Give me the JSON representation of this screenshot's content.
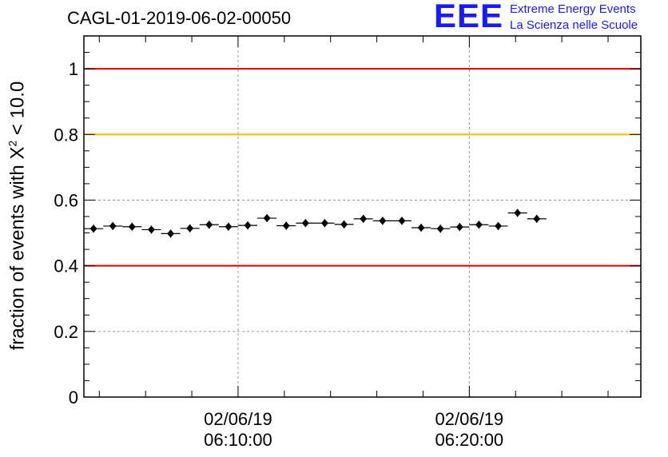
{
  "header": {
    "run_title": "CAGL-01-2019-06-02-00050",
    "logo_mark": "EEE",
    "logo_line1": "Extreme Energy Events",
    "logo_line2": "La Scienza nelle Scuole"
  },
  "colors": {
    "logo": "#1a1aff",
    "red_threshold": "#dd0000",
    "yellow_threshold": "#ffbb00",
    "markers": "#000000",
    "grid": "#999999"
  },
  "chart_data": {
    "type": "scatter",
    "title": "CAGL-01-2019-06-02-00050",
    "ylabel_prefix": "fraction of events with X",
    "ylabel_sup": "2",
    "ylabel_suffix": " < 10.0",
    "ylim": [
      0,
      1.1
    ],
    "yticks": [
      0,
      0.2,
      0.4,
      0.6,
      0.8,
      1
    ],
    "ytick_labels": [
      "0",
      "0.2",
      "0.4",
      "0.6",
      "0.8",
      "1"
    ],
    "xlim": [
      "06:03:20",
      "06:27:25"
    ],
    "xticks": [
      {
        "date": "02/06/19",
        "time": "06:10:00"
      },
      {
        "date": "02/06/19",
        "time": "06:20:00"
      }
    ],
    "grid": true,
    "reference_lines": [
      {
        "value": 1.0,
        "color": "red"
      },
      {
        "value": 0.8,
        "color": "yellow"
      },
      {
        "value": 0.4,
        "color": "red"
      }
    ],
    "bin_width_minutes": 0.83,
    "points": [
      {
        "t": "06:03:45",
        "y": 0.513
      },
      {
        "t": "06:04:35",
        "y": 0.521
      },
      {
        "t": "06:05:25",
        "y": 0.519
      },
      {
        "t": "06:06:15",
        "y": 0.51
      },
      {
        "t": "06:07:05",
        "y": 0.498
      },
      {
        "t": "06:07:55",
        "y": 0.514
      },
      {
        "t": "06:08:45",
        "y": 0.525
      },
      {
        "t": "06:09:35",
        "y": 0.519
      },
      {
        "t": "06:10:25",
        "y": 0.523
      },
      {
        "t": "06:11:15",
        "y": 0.545
      },
      {
        "t": "06:12:05",
        "y": 0.522
      },
      {
        "t": "06:12:55",
        "y": 0.53
      },
      {
        "t": "06:13:45",
        "y": 0.53
      },
      {
        "t": "06:14:35",
        "y": 0.526
      },
      {
        "t": "06:15:25",
        "y": 0.543
      },
      {
        "t": "06:16:15",
        "y": 0.537
      },
      {
        "t": "06:17:05",
        "y": 0.537
      },
      {
        "t": "06:17:55",
        "y": 0.516
      },
      {
        "t": "06:18:45",
        "y": 0.513
      },
      {
        "t": "06:19:35",
        "y": 0.518
      },
      {
        "t": "06:20:25",
        "y": 0.525
      },
      {
        "t": "06:21:15",
        "y": 0.521
      },
      {
        "t": "06:22:05",
        "y": 0.561
      },
      {
        "t": "06:22:55",
        "y": 0.543
      }
    ]
  }
}
